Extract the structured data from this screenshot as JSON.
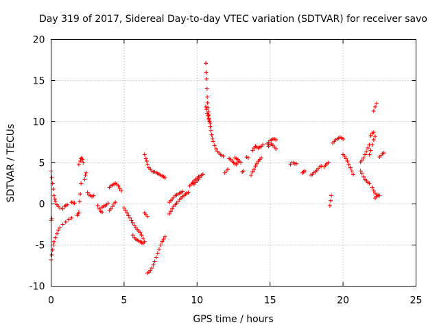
{
  "chart_data": {
    "type": "scatter",
    "title": "Day 319 of 2017, Sidereal Day-to-day VTEC variation (SDTVAR) for receiver savo",
    "xlabel": "GPS time / hours",
    "ylabel": "SDTVAR / TECUs",
    "xlim": [
      0,
      25
    ],
    "ylim": [
      -10,
      20
    ],
    "xticks": [
      0,
      5,
      10,
      15,
      20,
      25
    ],
    "yticks": [
      -10,
      -5,
      0,
      5,
      10,
      15,
      20
    ],
    "grid": true,
    "marker": "plus",
    "color": "#ff0000",
    "segments": [
      {
        "x": [
          0.0,
          0.05,
          0.1,
          0.15,
          0.2,
          0.25,
          0.3
        ],
        "y": [
          4.0,
          3.2,
          2.5,
          1.8,
          1.0,
          0.6,
          0.3
        ]
      },
      {
        "x": [
          0.0,
          0.05,
          0.1,
          0.15,
          0.2,
          0.3,
          0.4,
          0.5,
          0.6,
          0.8,
          1.0,
          1.2,
          1.4
        ],
        "y": [
          -6.8,
          -6.2,
          -5.6,
          -5.0,
          -4.6,
          -4.1,
          -3.6,
          -3.2,
          -2.9,
          -2.5,
          -2.2,
          -1.9,
          -1.7
        ]
      },
      {
        "x": [
          0.0,
          0.05
        ],
        "y": [
          -2.0,
          -1.8
        ]
      },
      {
        "x": [
          0.4,
          0.5,
          0.6
        ],
        "y": [
          -0.1,
          -0.3,
          -0.5
        ]
      },
      {
        "x": [
          0.8,
          0.9,
          1.0,
          1.1
        ],
        "y": [
          -0.6,
          -0.3,
          -0.2,
          -0.1
        ]
      },
      {
        "x": [
          1.4,
          1.5,
          1.6
        ],
        "y": [
          0.2,
          0.15,
          0.1
        ]
      },
      {
        "x": [
          1.9,
          2.0,
          2.05,
          2.1,
          2.15,
          2.2
        ],
        "y": [
          4.8,
          5.2,
          5.5,
          5.6,
          5.4,
          5.0
        ]
      },
      {
        "x": [
          1.8,
          1.85,
          1.9,
          1.95,
          2.0,
          2.05
        ],
        "y": [
          -1.4,
          -1.2,
          -1.0,
          0.3,
          1.2,
          2.5
        ]
      },
      {
        "x": [
          2.3,
          2.35,
          2.4
        ],
        "y": [
          3.0,
          3.5,
          3.8
        ]
      },
      {
        "x": [
          2.5,
          2.6,
          2.7,
          2.8,
          2.9
        ],
        "y": [
          1.4,
          1.1,
          1.0,
          0.9,
          1.0
        ]
      },
      {
        "x": [
          3.2,
          3.3,
          3.4,
          3.5
        ],
        "y": [
          -0.2,
          -0.6,
          -0.9,
          -1.0
        ]
      },
      {
        "x": [
          3.5,
          3.6,
          3.7,
          3.8,
          3.9
        ],
        "y": [
          -0.4,
          -0.3,
          -0.2,
          -0.1,
          0.1
        ]
      },
      {
        "x": [
          4.0,
          4.1,
          4.2,
          4.3,
          4.4
        ],
        "y": [
          -0.8,
          -0.6,
          -0.3,
          0.0,
          0.2
        ]
      },
      {
        "x": [
          4.0,
          4.1,
          4.2,
          4.3,
          4.4,
          4.5,
          4.6,
          4.7,
          4.8
        ],
        "y": [
          2.0,
          2.2,
          2.3,
          2.4,
          2.5,
          2.4,
          2.2,
          1.9,
          1.6
        ]
      },
      {
        "x": [
          5.0,
          5.1,
          5.2,
          5.3,
          5.4,
          5.5,
          5.6,
          5.7,
          5.8,
          5.9,
          6.0,
          6.1,
          6.2,
          6.3,
          6.4
        ],
        "y": [
          -0.5,
          -0.8,
          -1.1,
          -1.4,
          -1.7,
          -2.0,
          -2.3,
          -2.6,
          -2.9,
          -3.1,
          -3.3,
          -3.5,
          -3.8,
          -4.2,
          -4.6
        ]
      },
      {
        "x": [
          5.6,
          5.7,
          5.8,
          5.9,
          6.0,
          6.1,
          6.2,
          6.3
        ],
        "y": [
          -3.8,
          -4.1,
          -4.3,
          -4.4,
          -4.5,
          -4.6,
          -4.7,
          -4.8
        ]
      },
      {
        "x": [
          6.4,
          6.5,
          6.55,
          6.6,
          6.7,
          6.8,
          6.9,
          7.0,
          7.1,
          7.2,
          7.3,
          7.4,
          7.5,
          7.6,
          7.7,
          7.8
        ],
        "y": [
          6.0,
          5.5,
          5.2,
          4.8,
          4.4,
          4.2,
          4.0,
          3.9,
          3.9,
          3.8,
          3.7,
          3.6,
          3.5,
          3.4,
          3.3,
          3.2
        ]
      },
      {
        "x": [
          6.4,
          6.5,
          6.6
        ],
        "y": [
          -1.1,
          -1.3,
          -1.5
        ]
      },
      {
        "x": [
          6.6,
          6.7,
          6.8,
          6.9,
          7.0,
          7.1,
          7.2,
          7.3,
          7.4,
          7.5,
          7.6,
          7.7,
          7.8
        ],
        "y": [
          -8.4,
          -8.3,
          -8.1,
          -7.8,
          -7.4,
          -7.0,
          -6.5,
          -6.0,
          -5.5,
          -5.0,
          -4.6,
          -4.3,
          -4.0
        ]
      },
      {
        "x": [
          8.1,
          8.2,
          8.3,
          8.4,
          8.5,
          8.6,
          8.7,
          8.8,
          8.9,
          9.0,
          9.1,
          9.2,
          9.3,
          9.4
        ],
        "y": [
          -1.2,
          -0.9,
          -0.6,
          -0.3,
          -0.1,
          0.1,
          0.3,
          0.5,
          0.7,
          0.9,
          1.0,
          1.2,
          1.3,
          1.4
        ]
      },
      {
        "x": [
          8.1,
          8.2,
          8.3,
          8.4,
          8.5,
          8.6,
          8.7,
          8.8,
          8.9,
          9.0
        ],
        "y": [
          0.2,
          0.4,
          0.6,
          0.8,
          1.0,
          1.1,
          1.2,
          1.3,
          1.4,
          1.5
        ]
      },
      {
        "x": [
          9.5,
          9.6,
          9.7,
          9.8,
          9.9,
          10.0,
          10.1,
          10.2,
          10.3,
          10.4
        ],
        "y": [
          2.2,
          2.4,
          2.6,
          2.8,
          3.0,
          3.1,
          3.3,
          3.4,
          3.5,
          3.6
        ]
      },
      {
        "x": [
          9.7,
          9.8,
          9.9,
          10.0,
          10.1,
          10.2
        ],
        "y": [
          2.5,
          2.4,
          2.6,
          2.8,
          3.0,
          3.2
        ]
      },
      {
        "x": [
          10.6,
          10.62,
          10.65,
          10.68,
          10.7,
          10.72,
          10.75,
          10.78,
          10.8,
          10.82,
          10.85,
          10.9,
          10.95,
          11.0,
          11.05,
          11.1,
          11.2,
          11.3,
          11.4,
          11.5,
          11.6,
          11.7,
          11.8
        ],
        "y": [
          17.1,
          16.0,
          15.2,
          14.0,
          13.0,
          12.3,
          11.7,
          11.2,
          10.8,
          10.3,
          10.0,
          9.4,
          8.9,
          8.4,
          8.0,
          7.6,
          7.1,
          6.7,
          6.4,
          6.2,
          6.0,
          5.9,
          5.8
        ]
      },
      {
        "x": [
          10.6,
          10.65,
          10.7,
          10.75,
          10.8,
          10.85,
          10.9
        ],
        "y": [
          11.8,
          11.5,
          11.0,
          10.7,
          10.4,
          10.1,
          9.8
        ]
      },
      {
        "x": [
          11.9,
          12.0,
          12.1
        ],
        "y": [
          3.8,
          4.0,
          4.2
        ]
      },
      {
        "x": [
          12.2,
          12.3,
          12.4,
          12.5,
          12.6,
          12.7,
          12.8
        ],
        "y": [
          5.5,
          5.4,
          5.2,
          5.0,
          4.9,
          4.8,
          5.1
        ]
      },
      {
        "x": [
          12.6,
          12.7,
          12.8,
          12.9,
          13.0
        ],
        "y": [
          5.6,
          5.5,
          5.4,
          5.2,
          5.0
        ]
      },
      {
        "x": [
          13.4,
          13.5
        ],
        "y": [
          5.7,
          5.6
        ]
      },
      {
        "x": [
          13.1,
          13.2
        ],
        "y": [
          3.9,
          4.0
        ]
      },
      {
        "x": [
          13.7,
          13.8,
          13.9,
          14.0,
          14.1,
          14.2,
          14.3,
          14.4
        ],
        "y": [
          3.5,
          3.9,
          4.2,
          4.6,
          4.9,
          5.2,
          5.4,
          5.6
        ]
      },
      {
        "x": [
          13.8,
          13.9,
          14.0,
          14.1,
          14.2,
          14.3,
          14.4,
          14.5
        ],
        "y": [
          6.5,
          6.8,
          7.0,
          6.9,
          6.8,
          6.9,
          7.0,
          7.2
        ]
      },
      {
        "x": [
          14.8,
          14.9,
          15.0,
          15.1,
          15.2,
          15.3,
          15.4
        ],
        "y": [
          7.3,
          7.5,
          7.7,
          7.8,
          7.9,
          7.9,
          7.8
        ]
      },
      {
        "x": [
          14.9,
          15.0,
          15.1,
          15.2,
          15.3,
          15.4
        ],
        "y": [
          7.0,
          7.2,
          7.3,
          7.1,
          6.9,
          6.7
        ]
      },
      {
        "x": [
          16.4,
          16.5,
          16.6,
          16.7,
          16.8
        ],
        "y": [
          4.8,
          5.0,
          5.0,
          4.9,
          4.9
        ]
      },
      {
        "x": [
          17.2,
          17.3,
          17.4
        ],
        "y": [
          3.8,
          3.9,
          4.0
        ]
      },
      {
        "x": [
          17.8,
          17.9,
          18.0,
          18.1,
          18.2,
          18.3,
          18.4,
          18.5
        ],
        "y": [
          3.5,
          3.6,
          3.8,
          3.9,
          4.1,
          4.3,
          4.5,
          4.6
        ]
      },
      {
        "x": [
          18.7,
          18.8,
          18.9,
          19.0
        ],
        "y": [
          4.5,
          4.7,
          4.9,
          5.0
        ]
      },
      {
        "x": [
          19.1,
          19.15,
          19.2
        ],
        "y": [
          -0.2,
          0.4,
          1.0
        ]
      },
      {
        "x": [
          19.3,
          19.4,
          19.5,
          19.6,
          19.7,
          19.8,
          19.9,
          20.0
        ],
        "y": [
          7.4,
          7.6,
          7.8,
          7.9,
          8.0,
          8.1,
          8.0,
          7.9
        ]
      },
      {
        "x": [
          20.0,
          20.1,
          20.2,
          20.3,
          20.4,
          20.5,
          20.6,
          20.7
        ],
        "y": [
          6.0,
          5.8,
          5.5,
          5.2,
          4.8,
          4.4,
          4.0,
          3.6
        ]
      },
      {
        "x": [
          21.2,
          21.3,
          21.4,
          21.5,
          21.6,
          21.7,
          21.8
        ],
        "y": [
          5.1,
          5.3,
          5.6,
          6.0,
          6.4,
          6.8,
          7.2
        ]
      },
      {
        "x": [
          21.2,
          21.3,
          21.4,
          21.5,
          21.6,
          21.7,
          21.8
        ],
        "y": [
          4.0,
          3.7,
          3.3,
          3.0,
          2.8,
          2.6,
          2.5
        ]
      },
      {
        "x": [
          21.9,
          22.0,
          22.1
        ],
        "y": [
          8.3,
          8.6,
          8.7
        ]
      },
      {
        "x": [
          22.1,
          22.2,
          22.3
        ],
        "y": [
          11.3,
          11.8,
          12.2
        ]
      },
      {
        "x": [
          22.2,
          22.3,
          22.4,
          22.5,
          22.6,
          22.7,
          22.8
        ],
        "y": [
          0.7,
          0.9,
          1.1,
          5.7,
          5.9,
          6.1,
          6.2
        ]
      },
      {
        "x": [
          21.8,
          21.9,
          22.0,
          22.1,
          22.2
        ],
        "y": [
          6.0,
          6.5,
          7.2,
          7.8,
          8.2
        ]
      },
      {
        "x": [
          22.0,
          22.1,
          22.2,
          22.3,
          22.4,
          22.5
        ],
        "y": [
          2.0,
          1.6,
          1.3,
          1.1,
          1.0,
          1.0
        ]
      }
    ]
  }
}
